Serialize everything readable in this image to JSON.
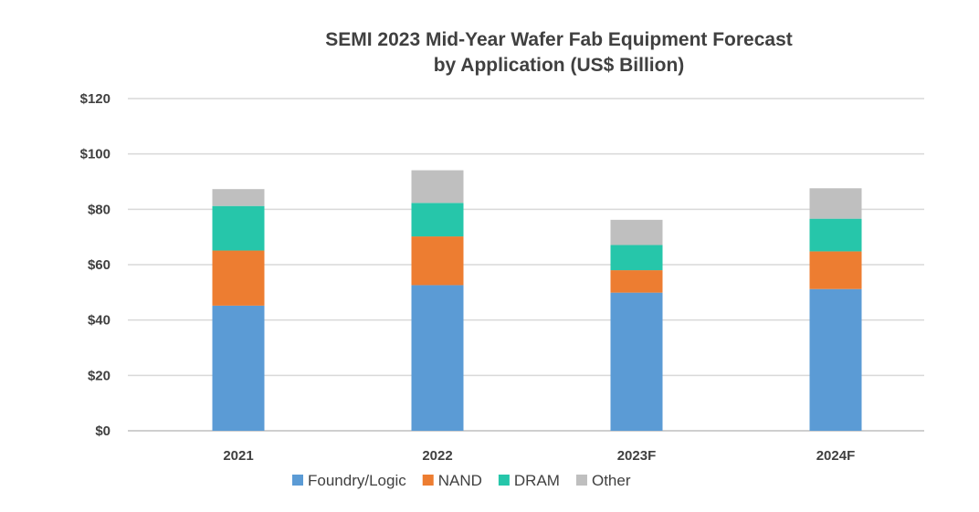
{
  "chart_data": {
    "type": "bar",
    "stacked": true,
    "title": "SEMI 2023 Mid-Year Wafer Fab Equipment Forecast",
    "subtitle": "by Application (US$ Billion)",
    "categories": [
      "2021",
      "2022",
      "2023F",
      "2024F"
    ],
    "series": [
      {
        "name": "Foundry/Logic",
        "color": "#5b9bd5",
        "values": [
          45.2,
          52.6,
          49.9,
          51.2
        ]
      },
      {
        "name": "NAND",
        "color": "#ed7d31",
        "values": [
          19.9,
          17.6,
          8.1,
          13.6
        ]
      },
      {
        "name": "DRAM",
        "color": "#26c6aa",
        "values": [
          16.1,
          12.1,
          9.1,
          11.8
        ]
      },
      {
        "name": "Other",
        "color": "#bfbfbf",
        "values": [
          6.1,
          11.8,
          9.1,
          11.0
        ]
      }
    ],
    "yticks": [
      "$0",
      "$20",
      "$40",
      "$60",
      "$80",
      "$100",
      "$120"
    ],
    "ylim": [
      0,
      120
    ],
    "grid": true,
    "legend_position": "bottom"
  }
}
